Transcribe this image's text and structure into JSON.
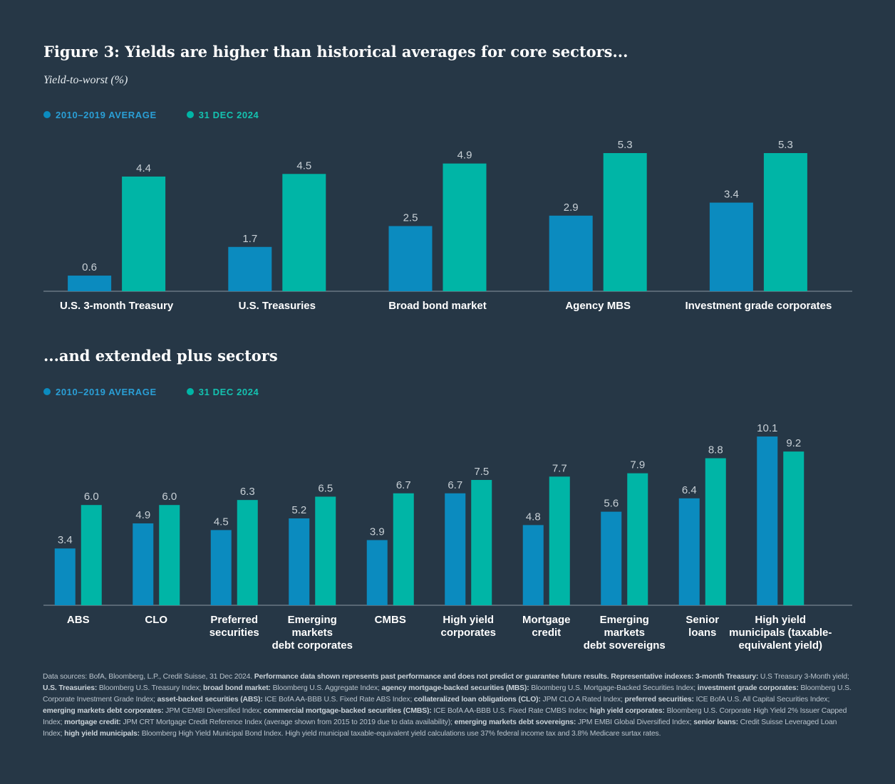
{
  "colors": {
    "background": "#263746",
    "avg": "#0b8bbf",
    "dec": "#00b5a6",
    "axis": "#8a97a3",
    "value_label": "#c8d0d6"
  },
  "figure": {
    "title": "Figure 3: Yields are higher than historical averages for core sectors...",
    "subtitle": "Yield-to-worst (%)",
    "title2": "...and extended plus sectors"
  },
  "legend": {
    "avg_label": "2010–2019 AVERAGE",
    "dec_label": "31 DEC 2024"
  },
  "chart_data": [
    {
      "type": "bar",
      "title": "Yields are higher than historical averages for core sectors...",
      "ylabel": "Yield-to-worst (%)",
      "categories": [
        "U.S. 3-month Treasury",
        "U.S. Treasuries",
        "Broad bond market",
        "Agency MBS",
        "Investment grade corporates"
      ],
      "series": [
        {
          "name": "2010–2019 AVERAGE",
          "values": [
            0.6,
            1.7,
            2.5,
            2.9,
            3.4
          ]
        },
        {
          "name": "31 DEC 2024",
          "values": [
            4.4,
            4.5,
            4.9,
            5.3,
            5.3
          ]
        }
      ],
      "ylim": [
        0,
        5.3
      ],
      "grid": false
    },
    {
      "type": "bar",
      "title": "...and extended plus sectors",
      "categories": [
        "ABS",
        "CLO",
        "Preferred securities",
        "Emerging markets debt corporates",
        "CMBS",
        "High yield corporates",
        "Mortgage credit",
        "Emerging markets debt sovereigns",
        "Senior loans",
        "High yield municipals (taxable-equivalent yield)"
      ],
      "category_lines": [
        [
          "ABS"
        ],
        [
          "CLO"
        ],
        [
          "Preferred",
          "securities"
        ],
        [
          "Emerging",
          "markets",
          "debt corporates"
        ],
        [
          "CMBS"
        ],
        [
          "High yield",
          "corporates"
        ],
        [
          "Mortgage",
          "credit"
        ],
        [
          "Emerging",
          "markets",
          "debt sovereigns"
        ],
        [
          "Senior",
          "loans"
        ],
        [
          "High yield",
          "municipals (taxable-",
          "equivalent yield)"
        ]
      ],
      "series": [
        {
          "name": "2010–2019 AVERAGE",
          "values": [
            3.4,
            4.9,
            4.5,
            5.2,
            3.9,
            6.7,
            4.8,
            5.6,
            6.4,
            10.1
          ]
        },
        {
          "name": "31 DEC 2024",
          "values": [
            6.0,
            6.0,
            6.3,
            6.5,
            6.7,
            7.5,
            7.7,
            7.9,
            8.8,
            9.2
          ]
        }
      ],
      "ylim": [
        0,
        10.1
      ],
      "grid": false
    }
  ],
  "footnote": [
    {
      "b": false,
      "t": "Data sources: BofA, Bloomberg, L.P., Credit Suisse, 31 Dec 2024. "
    },
    {
      "b": true,
      "t": "Performance data shown represents past performance and does not predict or guarantee future results. Representative indexes: 3-month Treasury: "
    },
    {
      "b": false,
      "t": "U.S Treasury 3-Month yield; "
    },
    {
      "b": true,
      "t": "U.S. Treasuries: "
    },
    {
      "b": false,
      "t": "Bloomberg U.S. Treasury Index; "
    },
    {
      "b": true,
      "t": "broad bond market: "
    },
    {
      "b": false,
      "t": "Bloomberg U.S. Aggregate Index; "
    },
    {
      "b": true,
      "t": "agency mortgage-backed securities (MBS): "
    },
    {
      "b": false,
      "t": "Bloomberg U.S. Mortgage-Backed Securities Index; "
    },
    {
      "b": true,
      "t": "investment grade corporates: "
    },
    {
      "b": false,
      "t": "Bloomberg U.S. Corporate Investment Grade Index; "
    },
    {
      "b": true,
      "t": "asset-backed securities (ABS): "
    },
    {
      "b": false,
      "t": "ICE BofA AA-BBB U.S. Fixed Rate ABS Index; "
    },
    {
      "b": true,
      "t": "collateralized loan obligations (CLO): "
    },
    {
      "b": false,
      "t": "JPM CLO A Rated Index; "
    },
    {
      "b": true,
      "t": "preferred securities: "
    },
    {
      "b": false,
      "t": "ICE BofA U.S. All Capital Securities Index; "
    },
    {
      "b": true,
      "t": "emerging markets debt corporates: "
    },
    {
      "b": false,
      "t": "JPM CEMBI Diversified Index; "
    },
    {
      "b": true,
      "t": "commercial mortgage-backed securities (CMBS): "
    },
    {
      "b": false,
      "t": "ICE BofA AA-BBB U.S. Fixed Rate CMBS Index; "
    },
    {
      "b": true,
      "t": "high yield corporates: "
    },
    {
      "b": false,
      "t": "Bloomberg U.S. Corporate High Yield 2% Issuer Capped Index; "
    },
    {
      "b": true,
      "t": "mortgage credit: "
    },
    {
      "b": false,
      "t": "JPM CRT Mortgage Credit Reference Index (average shown from 2015 to 2019 due to data availability); "
    },
    {
      "b": true,
      "t": "emerging markets debt sovereigns: "
    },
    {
      "b": false,
      "t": "JPM EMBI Global Diversified Index; "
    },
    {
      "b": true,
      "t": "senior loans: "
    },
    {
      "b": false,
      "t": "Credit Suisse Leveraged Loan Index; "
    },
    {
      "b": true,
      "t": "high yield municipals: "
    },
    {
      "b": false,
      "t": "Bloomberg High Yield Municipal Bond Index. High yield municipal taxable-equivalent yield calculations use 37% federal income tax and 3.8% Medicare surtax rates."
    }
  ]
}
